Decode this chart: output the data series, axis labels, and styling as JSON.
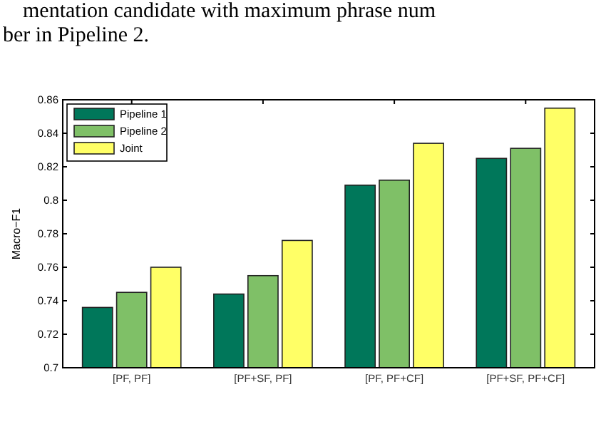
{
  "chart_data": {
    "type": "bar",
    "ylabel": "Macro−F1",
    "annotations": [
      "mentation candidate with maximum phrase num",
      "ber in Pipeline 2."
    ],
    "categories": [
      "[PF, PF]",
      "[PF+SF, PF]",
      "[PF, PF+CF]",
      "[PF+SF, PF+CF]"
    ],
    "series": [
      {
        "name": "Pipeline 1",
        "color": "#00775a",
        "values": [
          0.736,
          0.744,
          0.809,
          0.825
        ]
      },
      {
        "name": "Pipeline 2",
        "color": "#7fc067",
        "values": [
          0.745,
          0.755,
          0.812,
          0.831
        ]
      },
      {
        "name": "Joint",
        "color": "#ffff66",
        "values": [
          0.76,
          0.776,
          0.834,
          0.855
        ]
      }
    ],
    "ylim": [
      0.7,
      0.86
    ],
    "yticks": [
      0.7,
      0.72,
      0.74,
      0.76,
      0.78,
      0.8,
      0.82,
      0.84,
      0.86
    ],
    "legend": "top left",
    "grid": false
  }
}
